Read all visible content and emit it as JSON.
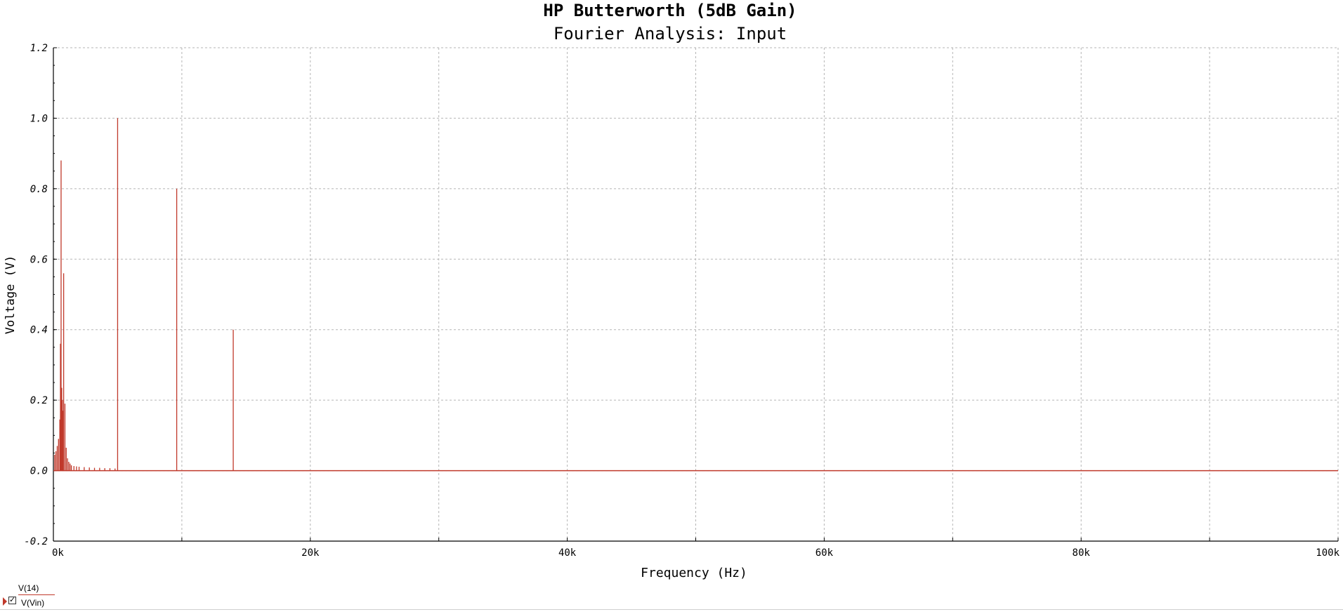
{
  "chart_data": {
    "type": "bar",
    "title": "HP Butterworth (5dB Gain)",
    "subtitle": "Fourier Analysis: Input",
    "xlabel": "Frequency (Hz)",
    "ylabel": "Voltage (V)",
    "xlim": [
      0,
      100000
    ],
    "ylim": [
      -0.2,
      1.2
    ],
    "x_ticks": [
      0,
      20000,
      40000,
      60000,
      80000,
      100000
    ],
    "x_tick_labels": [
      "0k",
      "20k",
      "40k",
      "60k",
      "80k",
      "100k"
    ],
    "y_ticks": [
      -0.2,
      0.0,
      0.2,
      0.4,
      0.6,
      0.8,
      1.0,
      1.2
    ],
    "y_tick_labels": [
      "-0.2",
      "0.0",
      "0.2",
      "0.4",
      "0.6",
      "0.8",
      "1.0",
      "1.2"
    ],
    "grid": true,
    "grid_style": "dashed",
    "series_color": "#c0392b",
    "series": [
      {
        "name": "V(14)",
        "x": [
          100,
          200,
          300,
          400,
          500,
          550,
          600,
          650,
          700,
          750,
          800,
          900,
          1000,
          1100,
          1200,
          1300,
          1400,
          1600,
          1800,
          2000,
          2400,
          2800,
          3200,
          3600,
          4000,
          4400,
          4800,
          5000,
          9600,
          14000
        ],
        "values": [
          0.045,
          0.055,
          0.07,
          0.09,
          0.145,
          0.36,
          0.88,
          0.235,
          0.2,
          0.17,
          0.56,
          0.19,
          0.065,
          0.035,
          0.025,
          0.02,
          0.015,
          0.013,
          0.012,
          0.011,
          0.01,
          0.009,
          0.008,
          0.008,
          0.007,
          0.007,
          0.006,
          1.0,
          0.8,
          0.4
        ]
      }
    ],
    "legend": [
      "V(14)",
      "V(Vin)"
    ],
    "legend_placement": "bottom-left"
  }
}
